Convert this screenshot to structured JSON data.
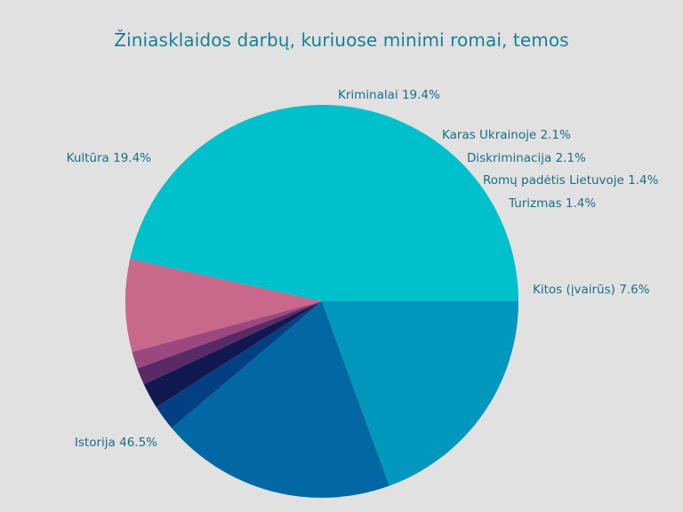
{
  "chart_data": {
    "type": "pie",
    "title": "Žiniasklaidos darbų, kuriuose minimi romai, temos",
    "slices": [
      {
        "label": "Istorija",
        "value": 46.5,
        "display": "Istorija 46.5%",
        "color": "#00c0cc"
      },
      {
        "label": "Kitos (įvairūs)",
        "value": 7.6,
        "display": "Kitos (įvairūs) 7.6%",
        "color": "#c8688a"
      },
      {
        "label": "Turizmas",
        "value": 1.4,
        "display": "Turizmas 1.4%",
        "color": "#9c4880"
      },
      {
        "label": "Romų padėtis Lietuvoje",
        "value": 1.4,
        "display": "Romų padėtis Lietuvoje 1.4%",
        "color": "#5a2a66"
      },
      {
        "label": "Diskriminacija",
        "value": 2.1,
        "display": "Diskriminacija 2.1%",
        "color": "#111850"
      },
      {
        "label": "Karas Ukrainoje",
        "value": 2.1,
        "display": "Karas Ukrainoje 2.1%",
        "color": "#033f83"
      },
      {
        "label": "Kriminalai",
        "value": 19.4,
        "display": "Kriminalai 19.4%",
        "color": "#0268a3"
      },
      {
        "label": "Kultūra",
        "value": 19.4,
        "display": "Kultūra 19.4%",
        "color": "#0297bd"
      }
    ],
    "start": "east",
    "direction": "counterclockwise",
    "legend": "none",
    "label_color": "#1b6f86"
  }
}
